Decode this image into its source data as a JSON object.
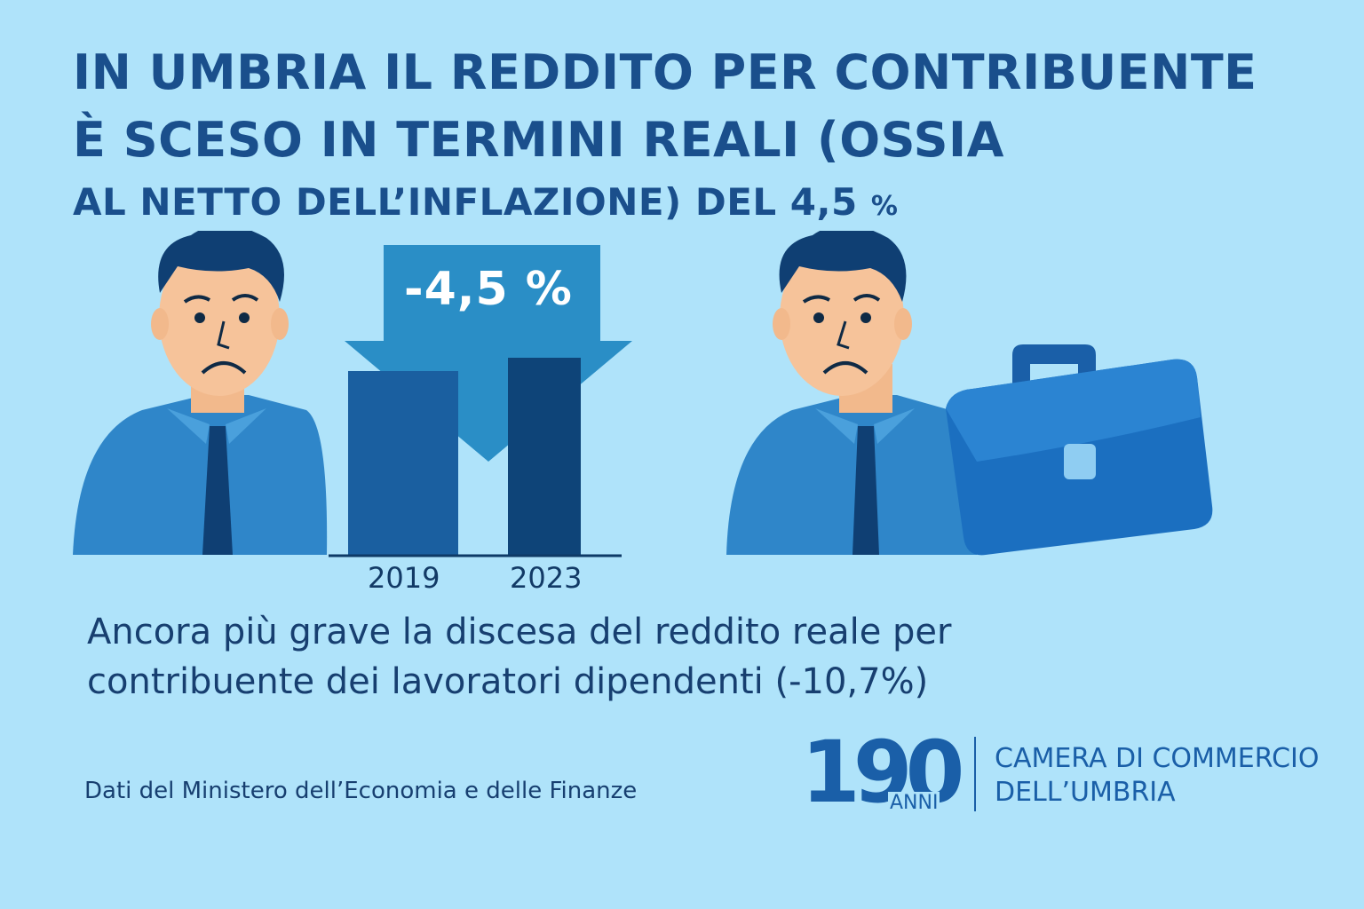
{
  "headline": {
    "line1": "IN UMBRIA IL REDDITO PER CONTRIBUENTE",
    "line2": "È SCESO IN TERMINI REALI (OSSIA",
    "line3": "AL NETTO DELL’INFLAZIONE) DEL 4,5",
    "line3_unit": "%"
  },
  "chart_data": {
    "type": "bar",
    "categories": [
      "2019",
      "2023"
    ],
    "change_label": "-4,5 %",
    "colors": {
      "bar_2019": "#1a5fa0",
      "bar_2023": "#0e4478",
      "arrow": "#2a8ec6"
    }
  },
  "subtitle": {
    "line1": "Ancora più grave la discesa del reddito reale per",
    "line2": "contribuente dei lavoratori dipendenti (-10,7%)"
  },
  "footer": {
    "source": "Dati del Ministero dell’Economia e delle Finanze",
    "logo_number": "190",
    "logo_anni": "ANNI",
    "org_line1": "CAMERA DI COMMERCIO",
    "org_line2": "DELL’UMBRIA"
  },
  "colors": {
    "background": "#afe3fa",
    "headline": "#1a4f8c",
    "shirt": "#2f86c9",
    "tie": "#0f3f73",
    "briefcase": "#1b6fc0"
  },
  "icons": [
    "sad-man-icon",
    "sad-man-icon",
    "briefcase-icon",
    "down-arrow-icon"
  ]
}
